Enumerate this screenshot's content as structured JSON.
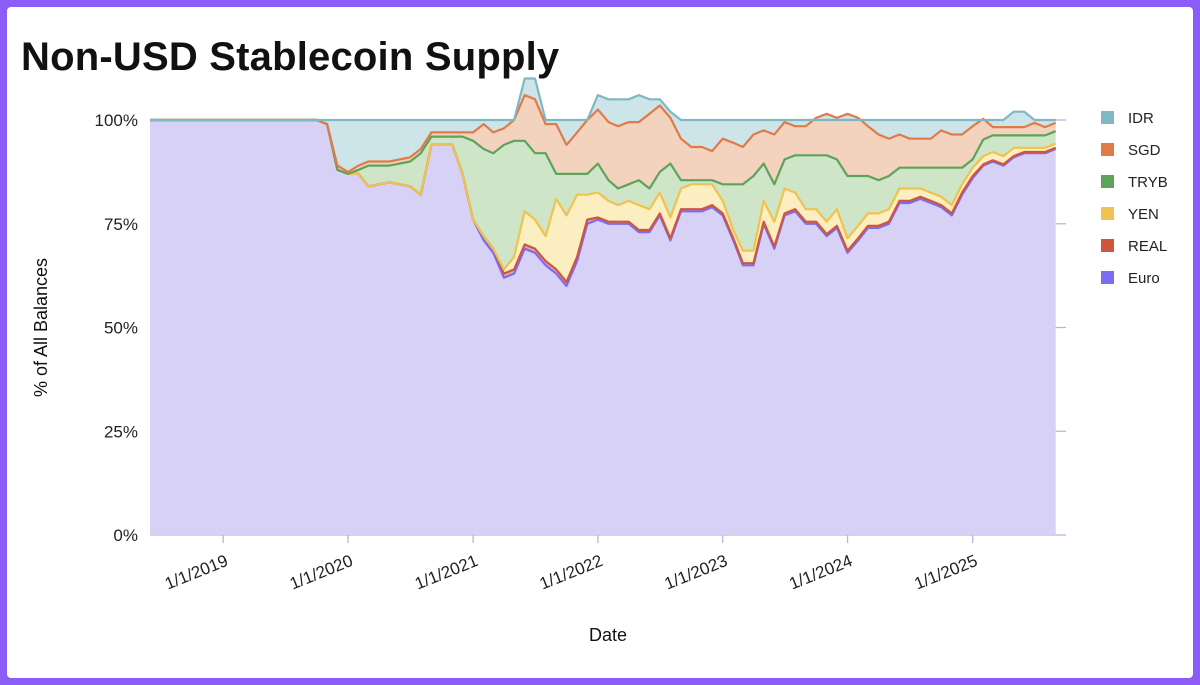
{
  "title": "Non-USD Stablecoin Supply",
  "chart_data": {
    "type": "area",
    "stacked": true,
    "percent": true,
    "title": "Non-USD Stablecoin Supply",
    "xlabel": "Date",
    "ylabel": "% of All Balances",
    "ylim": [
      0,
      100
    ],
    "y_ticks": [
      "0%",
      "25%",
      "50%",
      "75%",
      "100%"
    ],
    "x_ticks": [
      "1/1/2019",
      "1/1/2020",
      "1/1/2021",
      "1/1/2022",
      "1/1/2023",
      "1/1/2024",
      "1/1/2025"
    ],
    "xlim": [
      "2018-06-01",
      "2025-10-01"
    ],
    "grid": true,
    "legend_position": "right",
    "x": [
      "2018-06",
      "2019-02",
      "2019-08",
      "2019-10",
      "2019-11",
      "2019-12",
      "2020-01",
      "2020-02",
      "2020-03",
      "2020-05",
      "2020-07",
      "2020-08",
      "2020-09",
      "2020-10",
      "2020-11",
      "2020-12",
      "2021-01",
      "2021-02",
      "2021-03",
      "2021-04",
      "2021-05",
      "2021-06",
      "2021-07",
      "2021-08",
      "2021-09",
      "2021-10",
      "2021-11",
      "2021-12",
      "2022-01",
      "2022-02",
      "2022-03",
      "2022-04",
      "2022-05",
      "2022-06",
      "2022-07",
      "2022-08",
      "2022-09",
      "2022-10",
      "2022-11",
      "2022-12",
      "2023-01",
      "2023-02",
      "2023-03",
      "2023-04",
      "2023-05",
      "2023-06",
      "2023-07",
      "2023-08",
      "2023-09",
      "2023-10",
      "2023-11",
      "2023-12",
      "2024-01",
      "2024-02",
      "2024-03",
      "2024-04",
      "2024-05",
      "2024-06",
      "2024-07",
      "2024-08",
      "2024-09",
      "2024-10",
      "2024-11",
      "2024-12",
      "2025-01",
      "2025-02",
      "2025-03",
      "2025-04",
      "2025-05",
      "2025-06",
      "2025-07",
      "2025-08",
      "2025-09"
    ],
    "series": [
      {
        "name": "Euro",
        "color": "#7c6cf0",
        "fill": "#d7d1f6",
        "values": [
          100,
          100,
          100,
          100,
          99,
          88,
          87,
          87,
          84,
          85,
          84,
          82,
          94,
          94,
          94,
          87,
          76,
          71,
          68,
          62,
          63,
          69,
          68,
          65,
          63,
          60,
          66,
          75,
          76,
          75,
          75,
          75,
          73,
          73,
          77,
          71,
          78,
          78,
          78,
          79,
          77,
          71,
          65,
          65,
          75,
          69,
          77,
          78,
          75,
          75,
          72,
          74,
          68,
          71,
          74,
          74,
          75,
          80,
          80,
          81,
          80,
          79,
          77,
          82,
          86,
          89,
          90,
          89,
          91,
          92,
          92,
          92,
          93
        ]
      },
      {
        "name": "REAL",
        "color": "#d0553f",
        "fill": "#e6a9a6",
        "values": [
          0,
          0,
          0,
          0,
          0,
          0,
          0,
          0,
          0,
          0,
          0,
          0,
          0,
          0,
          0,
          0,
          0,
          1,
          1,
          1,
          1,
          1,
          1,
          1,
          1,
          1,
          1,
          1,
          0.5,
          0.5,
          0.5,
          0.5,
          0.5,
          0.5,
          0.5,
          0.5,
          0.5,
          0.5,
          0.5,
          0.5,
          0.5,
          0.5,
          0.5,
          0.5,
          0.5,
          0.5,
          0.5,
          0.5,
          0.5,
          0.5,
          0.5,
          0.5,
          0.5,
          0.5,
          0.5,
          0.5,
          0.5,
          0.5,
          0.5,
          0.5,
          0.5,
          0.5,
          0.5,
          0.5,
          0.5,
          0.3,
          0.3,
          0.3,
          0.3,
          0.3,
          0.3,
          0.3,
          0.3
        ]
      },
      {
        "name": "YEN",
        "color": "#f0c24f",
        "fill": "#fbeec0",
        "values": [
          0,
          0,
          0,
          0,
          0,
          0,
          0,
          0,
          0,
          0,
          0,
          0,
          0,
          0,
          0,
          0,
          0,
          0,
          0,
          1,
          3,
          8,
          7,
          6,
          17,
          16,
          15,
          6,
          6,
          5,
          4,
          5,
          6,
          5,
          5,
          5,
          5,
          6,
          6,
          5,
          3,
          2,
          3,
          3,
          5,
          6,
          6,
          4,
          3,
          3,
          3,
          4,
          3,
          3,
          3,
          3,
          3,
          3,
          3,
          2,
          2,
          2,
          2,
          2,
          2,
          2,
          2,
          2,
          2,
          1,
          1,
          1,
          1
        ]
      },
      {
        "name": "TRYB",
        "color": "#5ea35b",
        "fill": "#cfe5c7",
        "values": [
          0,
          0,
          0,
          0,
          0,
          0,
          0,
          1,
          5,
          4,
          6,
          10,
          2,
          2,
          2,
          9,
          19,
          21,
          23,
          30,
          28,
          17,
          16,
          20,
          6,
          10,
          5,
          5,
          7,
          5,
          4,
          4,
          6,
          5,
          5,
          13,
          2,
          1,
          1,
          1,
          4,
          11,
          16,
          18,
          9,
          9,
          7,
          9,
          13,
          13,
          16,
          12,
          15,
          12,
          9,
          8,
          8,
          5,
          5,
          5,
          6,
          7,
          9,
          4,
          2,
          4,
          4,
          5,
          3,
          3,
          3,
          3,
          3
        ]
      },
      {
        "name": "SGD",
        "color": "#e07b48",
        "fill": "#f3d3bd",
        "values": [
          0,
          0,
          0,
          0,
          0,
          1,
          0.5,
          1,
          1,
          1,
          1,
          1,
          1,
          1,
          1,
          1,
          2,
          6,
          5,
          4,
          5,
          11,
          13,
          7,
          12,
          7,
          10,
          13,
          13,
          14,
          15,
          15,
          14,
          18,
          16,
          11,
          10,
          8,
          8,
          7,
          11,
          10,
          9,
          10,
          8,
          12,
          9,
          7,
          7,
          9,
          10,
          10,
          15,
          14,
          12,
          11,
          9,
          8,
          7,
          7,
          7,
          9,
          8,
          8,
          8,
          5,
          2,
          2,
          2,
          2,
          3,
          2,
          2
        ]
      },
      {
        "name": "IDR",
        "color": "#7fb7c2",
        "fill": "#cde4e8",
        "values": [
          0,
          0,
          0,
          0,
          1,
          11,
          12.5,
          11,
          10,
          10,
          9,
          7,
          3,
          3,
          3,
          3,
          3,
          1,
          3,
          2,
          0,
          4,
          5,
          1,
          1,
          6,
          3,
          0,
          3.5,
          5.5,
          6.5,
          5.5,
          6.5,
          3.5,
          1.5,
          1.5,
          4.5,
          6.5,
          6.5,
          7.5,
          4.5,
          5.5,
          6.5,
          3.5,
          2.5,
          3.5,
          0.5,
          1.5,
          1.5,
          -0.5,
          -1.5,
          -0.5,
          -1.5,
          -0.5,
          1.5,
          3.5,
          4.5,
          3.5,
          4.5,
          4.5,
          4.5,
          2.5,
          3.5,
          3.5,
          1.5,
          -0.3,
          1.7,
          1.7,
          3.7,
          3.7,
          0.7,
          1.7,
          0.7
        ]
      }
    ]
  }
}
